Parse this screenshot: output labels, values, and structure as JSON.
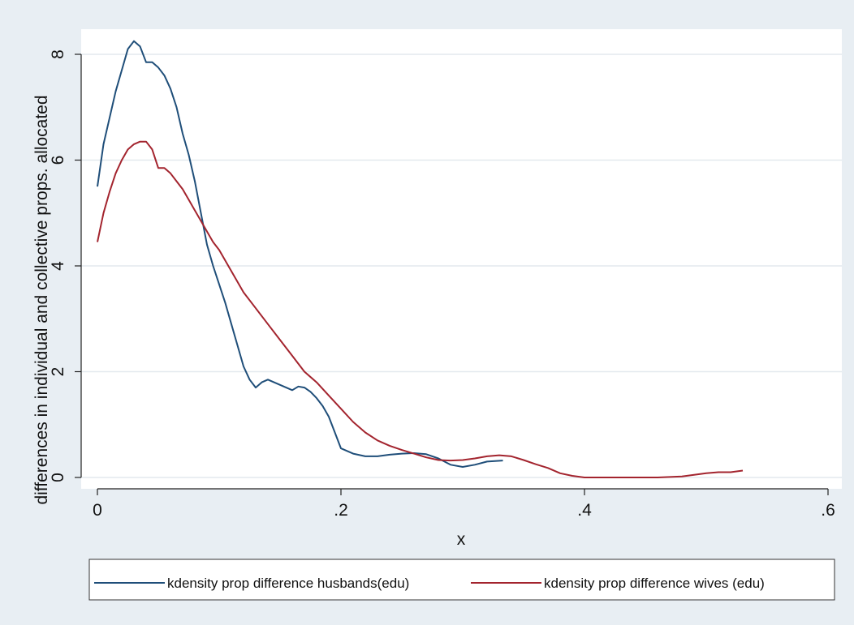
{
  "chart_data": {
    "type": "line",
    "xlabel": "x",
    "ylabel": "differences in individual and collective props. allocated",
    "xlim": [
      0,
      0.6
    ],
    "ylim": [
      0,
      8
    ],
    "x_ticks": [
      0,
      0.2,
      0.4,
      0.6
    ],
    "x_tick_labels": [
      "0",
      ".2",
      ".4",
      ".6"
    ],
    "y_ticks": [
      0,
      2,
      4,
      6,
      8
    ],
    "y_tick_labels": [
      "0",
      "2",
      "4",
      "6",
      "8"
    ],
    "grid": true,
    "legend_position": "bottom",
    "series": [
      {
        "name": "kdensity prop difference husbands(edu)",
        "color": "#1f4e79",
        "points": [
          [
            0.0,
            5.5
          ],
          [
            0.005,
            6.3
          ],
          [
            0.01,
            6.8
          ],
          [
            0.015,
            7.3
          ],
          [
            0.02,
            7.7
          ],
          [
            0.025,
            8.1
          ],
          [
            0.03,
            8.25
          ],
          [
            0.035,
            8.15
          ],
          [
            0.04,
            7.85
          ],
          [
            0.045,
            7.85
          ],
          [
            0.05,
            7.75
          ],
          [
            0.055,
            7.6
          ],
          [
            0.06,
            7.35
          ],
          [
            0.065,
            7.0
          ],
          [
            0.07,
            6.5
          ],
          [
            0.075,
            6.1
          ],
          [
            0.08,
            5.6
          ],
          [
            0.085,
            5.0
          ],
          [
            0.09,
            4.4
          ],
          [
            0.095,
            4.0
          ],
          [
            0.1,
            3.65
          ],
          [
            0.105,
            3.3
          ],
          [
            0.11,
            2.9
          ],
          [
            0.115,
            2.5
          ],
          [
            0.12,
            2.1
          ],
          [
            0.125,
            1.85
          ],
          [
            0.13,
            1.7
          ],
          [
            0.135,
            1.8
          ],
          [
            0.14,
            1.85
          ],
          [
            0.145,
            1.8
          ],
          [
            0.15,
            1.75
          ],
          [
            0.155,
            1.7
          ],
          [
            0.16,
            1.65
          ],
          [
            0.165,
            1.72
          ],
          [
            0.17,
            1.7
          ],
          [
            0.175,
            1.62
          ],
          [
            0.18,
            1.5
          ],
          [
            0.185,
            1.35
          ],
          [
            0.19,
            1.15
          ],
          [
            0.195,
            0.85
          ],
          [
            0.2,
            0.55
          ],
          [
            0.21,
            0.45
          ],
          [
            0.22,
            0.4
          ],
          [
            0.23,
            0.4
          ],
          [
            0.24,
            0.43
          ],
          [
            0.25,
            0.45
          ],
          [
            0.26,
            0.46
          ],
          [
            0.27,
            0.44
          ],
          [
            0.28,
            0.36
          ],
          [
            0.29,
            0.24
          ],
          [
            0.3,
            0.2
          ],
          [
            0.31,
            0.24
          ],
          [
            0.32,
            0.3
          ],
          [
            0.333,
            0.32
          ]
        ]
      },
      {
        "name": "kdensity prop difference wives (edu)",
        "color": "#a3242e",
        "points": [
          [
            0.0,
            4.45
          ],
          [
            0.005,
            5.0
          ],
          [
            0.01,
            5.4
          ],
          [
            0.015,
            5.75
          ],
          [
            0.02,
            6.0
          ],
          [
            0.025,
            6.2
          ],
          [
            0.03,
            6.3
          ],
          [
            0.035,
            6.35
          ],
          [
            0.04,
            6.35
          ],
          [
            0.045,
            6.2
          ],
          [
            0.05,
            5.85
          ],
          [
            0.055,
            5.85
          ],
          [
            0.06,
            5.75
          ],
          [
            0.065,
            5.6
          ],
          [
            0.07,
            5.45
          ],
          [
            0.075,
            5.25
          ],
          [
            0.08,
            5.05
          ],
          [
            0.085,
            4.85
          ],
          [
            0.09,
            4.65
          ],
          [
            0.095,
            4.45
          ],
          [
            0.1,
            4.3
          ],
          [
            0.11,
            3.9
          ],
          [
            0.12,
            3.5
          ],
          [
            0.13,
            3.2
          ],
          [
            0.14,
            2.9
          ],
          [
            0.15,
            2.6
          ],
          [
            0.16,
            2.3
          ],
          [
            0.17,
            2.0
          ],
          [
            0.18,
            1.8
          ],
          [
            0.19,
            1.55
          ],
          [
            0.2,
            1.3
          ],
          [
            0.21,
            1.05
          ],
          [
            0.22,
            0.85
          ],
          [
            0.23,
            0.7
          ],
          [
            0.24,
            0.6
          ],
          [
            0.25,
            0.52
          ],
          [
            0.26,
            0.45
          ],
          [
            0.27,
            0.38
          ],
          [
            0.28,
            0.33
          ],
          [
            0.29,
            0.32
          ],
          [
            0.3,
            0.33
          ],
          [
            0.31,
            0.36
          ],
          [
            0.32,
            0.4
          ],
          [
            0.33,
            0.42
          ],
          [
            0.34,
            0.4
          ],
          [
            0.35,
            0.33
          ],
          [
            0.36,
            0.25
          ],
          [
            0.37,
            0.18
          ],
          [
            0.38,
            0.08
          ],
          [
            0.39,
            0.03
          ],
          [
            0.4,
            0.0
          ],
          [
            0.42,
            0.0
          ],
          [
            0.44,
            0.0
          ],
          [
            0.46,
            0.0
          ],
          [
            0.48,
            0.02
          ],
          [
            0.49,
            0.05
          ],
          [
            0.5,
            0.08
          ],
          [
            0.51,
            0.1
          ],
          [
            0.52,
            0.1
          ],
          [
            0.53,
            0.13
          ]
        ]
      }
    ]
  }
}
